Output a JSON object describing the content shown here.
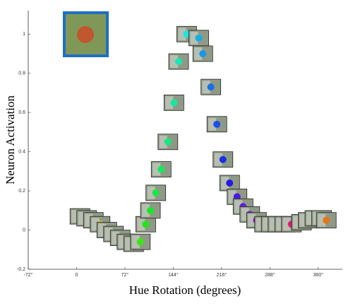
{
  "chart_data": {
    "type": "scatter",
    "x_label": "Hue Rotation (degrees)",
    "y_label": "Neuron Activation",
    "xlim": [
      -72,
      396
    ],
    "ylim": [
      -0.2,
      1.12
    ],
    "xticks": [
      {
        "value": -72,
        "label": "-72°"
      },
      0,
      {
        "value": 72,
        "label": "72°"
      },
      {
        "value": 144,
        "label": "144°"
      },
      {
        "value": 216,
        "label": "216°"
      },
      {
        "value": 288,
        "label": "288°"
      },
      {
        "value": 360,
        "label": "360°"
      }
    ],
    "yticks": [
      -0.2,
      0,
      0.2,
      0.4,
      0.6,
      0.8,
      1
    ],
    "x": [
      5,
      15,
      25,
      35,
      45,
      55,
      65,
      75,
      85,
      95,
      103,
      110,
      118,
      126,
      136,
      145,
      152,
      164,
      182,
      188,
      200,
      209,
      218,
      228,
      239,
      248,
      258,
      268,
      280,
      290,
      300,
      310,
      320,
      335,
      345,
      355,
      365,
      372
    ],
    "values": [
      0.07,
      0.06,
      0.05,
      0.03,
      0.0,
      -0.02,
      -0.04,
      -0.06,
      -0.07,
      -0.06,
      0.03,
      0.1,
      0.19,
      0.31,
      0.45,
      0.65,
      0.86,
      1.0,
      0.98,
      0.9,
      0.73,
      0.54,
      0.36,
      0.24,
      0.17,
      0.12,
      0.08,
      0.05,
      0.03,
      0.03,
      0.03,
      0.03,
      0.03,
      0.04,
      0.05,
      0.06,
      0.06,
      0.05
    ]
  }
}
